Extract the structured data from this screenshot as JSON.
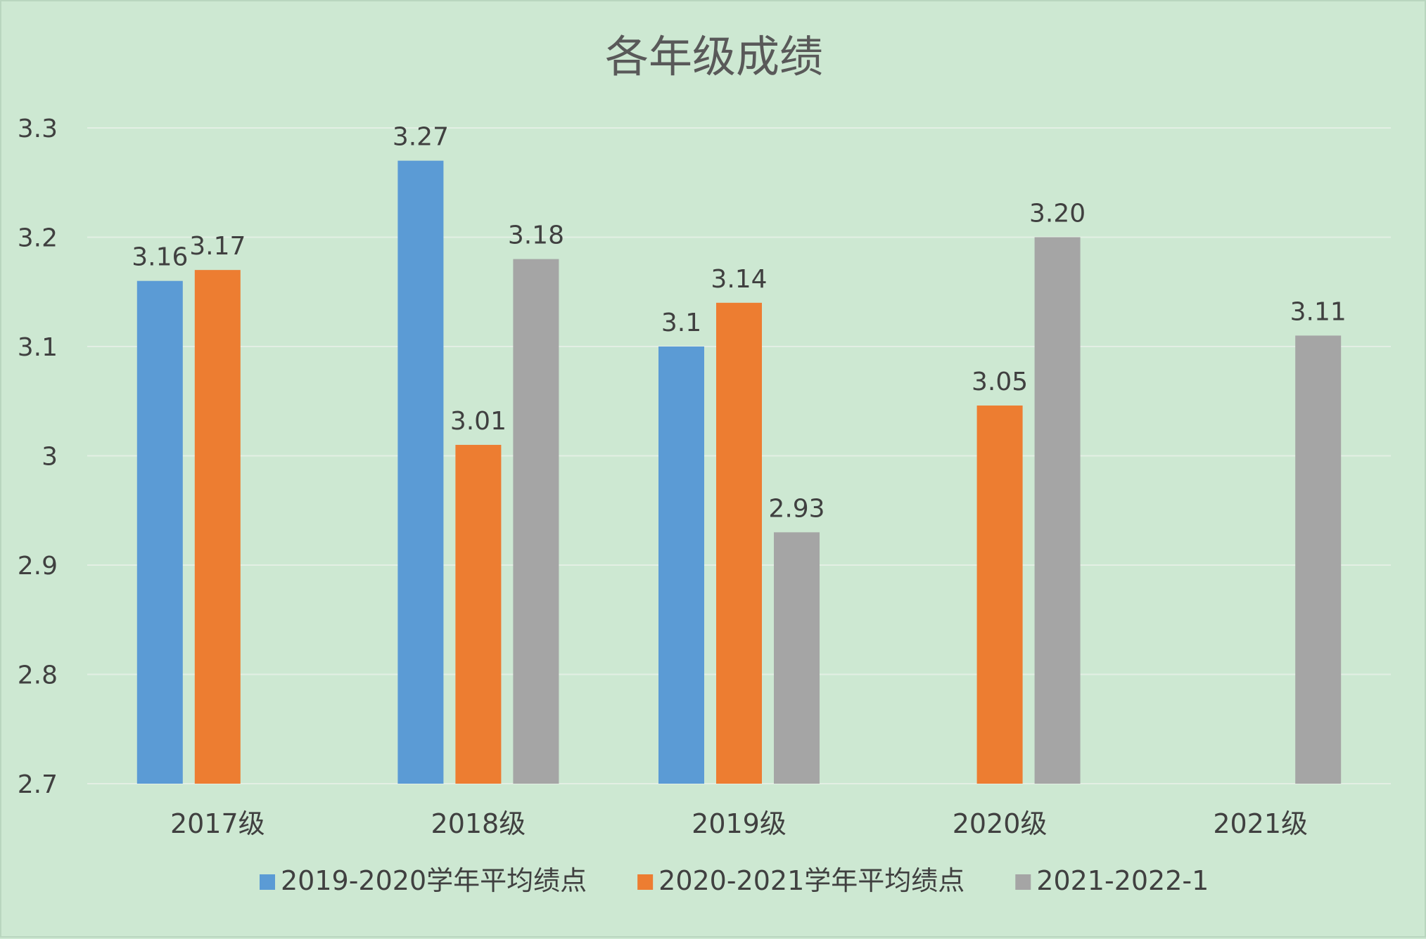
{
  "chart_data": {
    "type": "bar",
    "title": "各年级成绩",
    "categories": [
      "2017级",
      "2018级",
      "2019级",
      "2020级",
      "2021级"
    ],
    "ylim": [
      2.7,
      3.3
    ],
    "yticks": [
      2.7,
      2.8,
      2.9,
      3,
      3.1,
      3.2,
      3.3
    ],
    "ytick_labels": [
      "2.7",
      "2.8",
      "2.9",
      "3",
      "3.1",
      "3.2",
      "3.3"
    ],
    "grid": true,
    "legend_position": "bottom",
    "series": [
      {
        "name": "2019-2020学年平均绩点",
        "color": "#5b9bd5",
        "values": [
          3.16,
          3.27,
          3.1,
          null,
          null
        ],
        "labels": [
          "3.16",
          "3.27",
          "3.1",
          "",
          ""
        ]
      },
      {
        "name": "2020-2021学年平均绩点",
        "color": "#ed7d31",
        "values": [
          3.17,
          3.01,
          3.14,
          3.046,
          null
        ],
        "labels": [
          "3.17",
          "3.01",
          "3.14",
          "3.05",
          ""
        ]
      },
      {
        "name": "2021-2022-1",
        "color": "#a5a5a5",
        "values": [
          null,
          3.18,
          2.93,
          3.2,
          3.11
        ],
        "labels": [
          "",
          "3.18",
          "2.93",
          "3.20",
          "3.11"
        ]
      }
    ]
  }
}
